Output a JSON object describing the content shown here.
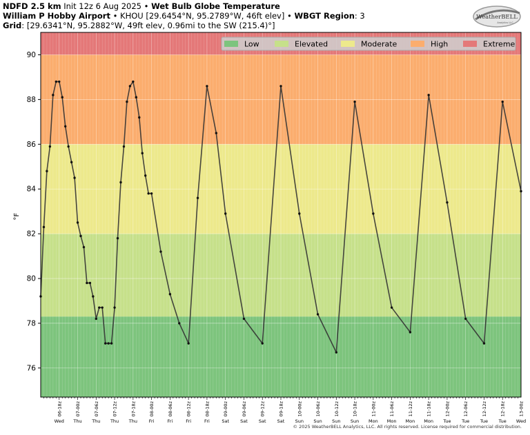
{
  "header": {
    "model": "NDFD 2.5 km",
    "init": "Init 12z 6 Aug 2025",
    "sep": "•",
    "product": "Wet Bulb Globe Temperature",
    "station_name": "William P Hobby Airport",
    "station_info": "KHOU [29.6454°N, 95.2789°W, 46ft elev]",
    "region_label": "WBGT Region",
    "region_value": ": 3",
    "grid_label": "Grid",
    "grid_info": ": [29.6341°N, 95.2882°W, 49ft elev, 0.96mi to the SW (215.4)°]"
  },
  "logo": {
    "text": "WeatherBELL",
    "subtext": "Analytics LLC"
  },
  "footer": "© 2025 WeatherBELL Analytics, LLC. All rights reserved. License required for commercial distribution.",
  "colors": {
    "low": "#7dc47d",
    "elevated": "#c6e08a",
    "moderate": "#ede98c",
    "high": "#fbad6e",
    "extreme": "#e47878",
    "line": "#333333"
  },
  "chart_data": {
    "type": "line",
    "ylabel": "°F",
    "ylim": [
      74.7,
      91.0
    ],
    "yticks": [
      76,
      78,
      80,
      82,
      84,
      86,
      88,
      90
    ],
    "grid": true,
    "legend_position": "top-right",
    "bands": [
      {
        "name": "Low",
        "from": 74.7,
        "to": 78.3,
        "color": "#7dc47d"
      },
      {
        "name": "Elevated",
        "from": 78.3,
        "to": 82.0,
        "color": "#c6e08a"
      },
      {
        "name": "Moderate",
        "from": 82.0,
        "to": 86.0,
        "color": "#ede98c"
      },
      {
        "name": "High",
        "from": 86.0,
        "to": 90.0,
        "color": "#fbad6e"
      },
      {
        "name": "Extreme",
        "from": 90.0,
        "to": 91.0,
        "color": "#e47878"
      }
    ],
    "legend": [
      "Low",
      "Elevated",
      "Moderate",
      "High",
      "Extreme"
    ],
    "x_start": "2025-08-06 12z",
    "x_end": "2025-08-13 00z",
    "x_tick_labels": [
      "06-18z",
      "07-00z",
      "07-06z",
      "07-12z",
      "07-18z",
      "08-00z",
      "08-06z",
      "08-12z",
      "08-18z",
      "09-00z",
      "09-06z",
      "09-12z",
      "09-18z",
      "10-00z",
      "10-06z",
      "10-12z",
      "10-18z",
      "11-00z",
      "11-06z",
      "11-12z",
      "11-18z",
      "12-00z",
      "12-06z",
      "12-12z",
      "12-18z",
      "13-00z"
    ],
    "x_day_labels": [
      "Wed",
      "Thu",
      "Thu",
      "Thu",
      "Thu",
      "Fri",
      "Fri",
      "Fri",
      "Fri",
      "Sat",
      "Sat",
      "Sat",
      "Sat",
      "Sun",
      "Sun",
      "Sun",
      "Sun",
      "Mon",
      "Mon",
      "Mon",
      "Mon",
      "Tue",
      "Tue",
      "Tue",
      "Tue",
      "Wed"
    ],
    "series": [
      {
        "x": [
          "06-12z",
          "06-13z",
          "06-14z",
          "06-15z",
          "06-16z",
          "06-17z",
          "06-18z",
          "06-19z",
          "06-20z",
          "06-21z",
          "06-22z",
          "06-23z",
          "07-00z",
          "07-01z",
          "07-02z",
          "07-03z",
          "07-04z",
          "07-05z",
          "07-06z",
          "07-07z",
          "07-08z",
          "07-09z",
          "07-10z",
          "07-11z",
          "07-12z",
          "07-13z",
          "07-14z",
          "07-15z",
          "07-16z",
          "07-17z",
          "07-18z",
          "07-19z",
          "07-20z",
          "07-21z",
          "07-22z",
          "07-23z",
          "08-00z",
          "08-03z",
          "08-06z",
          "08-09z",
          "08-12z",
          "08-15z",
          "08-18z",
          "08-21z",
          "09-00z",
          "09-06z",
          "09-12z",
          "09-18z",
          "10-00z",
          "10-06z",
          "10-12z",
          "10-18z",
          "11-00z",
          "11-06z",
          "11-12z",
          "11-18z",
          "12-00z",
          "12-06z",
          "12-12z",
          "12-18z",
          "13-00z"
        ],
        "values": [
          79.2,
          82.3,
          84.8,
          85.9,
          88.2,
          88.8,
          88.8,
          88.1,
          86.8,
          85.9,
          85.2,
          84.5,
          82.5,
          81.9,
          81.4,
          79.8,
          79.8,
          79.2,
          78.2,
          78.7,
          78.7,
          77.1,
          77.1,
          77.1,
          78.7,
          81.8,
          84.3,
          85.9,
          87.9,
          88.6,
          88.8,
          88.1,
          87.2,
          85.6,
          84.6,
          83.8,
          83.8,
          81.2,
          79.3,
          78.0,
          77.1,
          83.6,
          88.6,
          86.5,
          82.9,
          78.2,
          77.1,
          88.6,
          82.9,
          78.4,
          76.7,
          87.9,
          82.9,
          78.7,
          77.6,
          88.2,
          83.4,
          78.2,
          77.1,
          87.9,
          83.9
        ]
      }
    ]
  }
}
